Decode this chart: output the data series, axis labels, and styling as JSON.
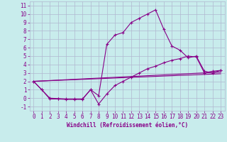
{
  "xlabel": "Windchill (Refroidissement éolien,°C)",
  "background_color": "#c8ecec",
  "grid_color": "#b0b8d0",
  "line_color": "#880088",
  "xlim": [
    -0.5,
    23.5
  ],
  "ylim": [
    -1.5,
    11.5
  ],
  "xticks": [
    0,
    1,
    2,
    3,
    4,
    5,
    6,
    7,
    8,
    9,
    10,
    11,
    12,
    13,
    14,
    15,
    16,
    17,
    18,
    19,
    20,
    21,
    22,
    23
  ],
  "yticks": [
    -1,
    0,
    1,
    2,
    3,
    4,
    5,
    6,
    7,
    8,
    9,
    10,
    11
  ],
  "series1_x": [
    0,
    1,
    2,
    3,
    4,
    5,
    6,
    7,
    8,
    9,
    10,
    11,
    12,
    13,
    14,
    15,
    16,
    17,
    18,
    19,
    20,
    21,
    22,
    23
  ],
  "series1_y": [
    2.0,
    1.0,
    -0.1,
    -0.1,
    -0.15,
    -0.15,
    -0.15,
    1.0,
    0.3,
    6.4,
    7.5,
    7.8,
    9.0,
    9.5,
    10.0,
    10.5,
    8.2,
    6.2,
    5.7,
    4.8,
    5.0,
    3.2,
    3.0,
    3.3
  ],
  "series2_x": [
    0,
    1,
    2,
    3,
    4,
    5,
    6,
    7,
    8,
    9,
    10,
    11,
    12,
    13,
    14,
    15,
    16,
    17,
    18,
    19,
    20,
    21,
    22,
    23
  ],
  "series2_y": [
    2.0,
    1.0,
    0.0,
    -0.05,
    -0.1,
    -0.1,
    -0.1,
    1.0,
    -0.7,
    0.5,
    1.5,
    2.0,
    2.5,
    3.0,
    3.5,
    3.8,
    4.2,
    4.5,
    4.7,
    5.0,
    4.9,
    3.0,
    3.2,
    3.3
  ],
  "series3_y_start": 2.0,
  "series3_y_end": 3.1,
  "series4_y_start": 2.0,
  "series4_y_end": 2.9
}
